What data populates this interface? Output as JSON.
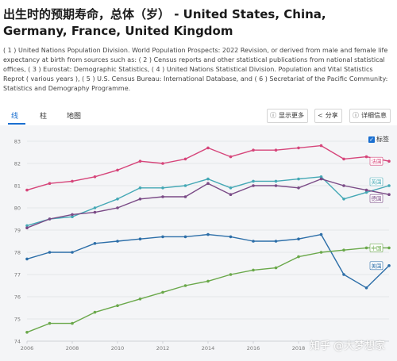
{
  "header": {
    "title": "出生时的预期寿命，总体（岁） - United States, China, Germany, France, United Kingdom",
    "description": "( 1 ) United Nations Population Division. World Population Prospects: 2022 Revision, or derived from male and female life expectancy at birth from sources such as: ( 2 ) Census reports and other statistical publications from national statistical offices, ( 3 ) Eurostat: Demographic Statistics, ( 4 ) United Nations Statistical Division. Population and Vital Statistics Reprot ( various years ), ( 5 ) U.S. Census Bureau: International Database, and ( 6 ) Secretariat of the Pacific Community: Statistics and Demography Programme."
  },
  "tabs": [
    {
      "label": "线",
      "icon": "line-chart-icon",
      "active": true
    },
    {
      "label": "柱",
      "icon": "bar-chart-icon",
      "active": false
    },
    {
      "label": "地图",
      "icon": "map-icon",
      "active": false
    }
  ],
  "toolbar": {
    "more_label": "显示更多",
    "share_label": "分享",
    "details_label": "详细信息"
  },
  "legend": {
    "label": "标签",
    "checked": true
  },
  "watermark": "知乎 @大梦想家",
  "colors": {
    "accent": "#1a6fd0",
    "france": "#d6457a",
    "germany": "#7a4a86",
    "us": "#2c6ea8",
    "china": "#6aa84a",
    "uk": "#44a8b5"
  },
  "chart_data": {
    "type": "line",
    "x": [
      2006,
      2007,
      2008,
      2009,
      2010,
      2011,
      2012,
      2013,
      2014,
      2015,
      2016,
      2017,
      2018,
      2019,
      2020,
      2021,
      2022
    ],
    "xticks": [
      2006,
      2008,
      2010,
      2012,
      2014,
      2016,
      2018
    ],
    "ylim": [
      74,
      83
    ],
    "yticks": [
      74,
      75,
      76,
      77,
      78,
      79,
      80,
      81,
      82,
      83
    ],
    "grid": true,
    "legend_position": "top-right",
    "series": [
      {
        "name": "法国",
        "color": "#d6457a",
        "values": [
          80.8,
          81.1,
          81.2,
          81.4,
          81.7,
          82.1,
          82.0,
          82.2,
          82.7,
          82.3,
          82.6,
          82.6,
          82.7,
          82.8,
          82.2,
          82.3,
          82.1
        ]
      },
      {
        "name": "英国",
        "color": "#44a8b5",
        "values": [
          79.2,
          79.5,
          79.6,
          80.0,
          80.4,
          80.9,
          80.9,
          81.0,
          81.3,
          80.9,
          81.2,
          81.2,
          81.3,
          81.4,
          80.4,
          80.7,
          81.0
        ]
      },
      {
        "name": "德国",
        "color": "#7a4a86",
        "values": [
          79.1,
          79.5,
          79.7,
          79.8,
          80.0,
          80.4,
          80.5,
          80.5,
          81.1,
          80.6,
          81.0,
          81.0,
          80.9,
          81.3,
          81.0,
          80.8,
          80.6
        ]
      },
      {
        "name": "美国",
        "color": "#2c6ea8",
        "values": [
          77.7,
          78.0,
          78.0,
          78.4,
          78.5,
          78.6,
          78.7,
          78.7,
          78.8,
          78.7,
          78.5,
          78.5,
          78.6,
          78.8,
          77.0,
          76.4,
          77.4
        ]
      },
      {
        "name": "中国",
        "color": "#6aa84a",
        "values": [
          74.4,
          74.8,
          74.8,
          75.3,
          75.6,
          75.9,
          76.2,
          76.5,
          76.7,
          77.0,
          77.2,
          77.3,
          77.8,
          78.0,
          78.1,
          78.2,
          78.2
        ]
      }
    ]
  }
}
